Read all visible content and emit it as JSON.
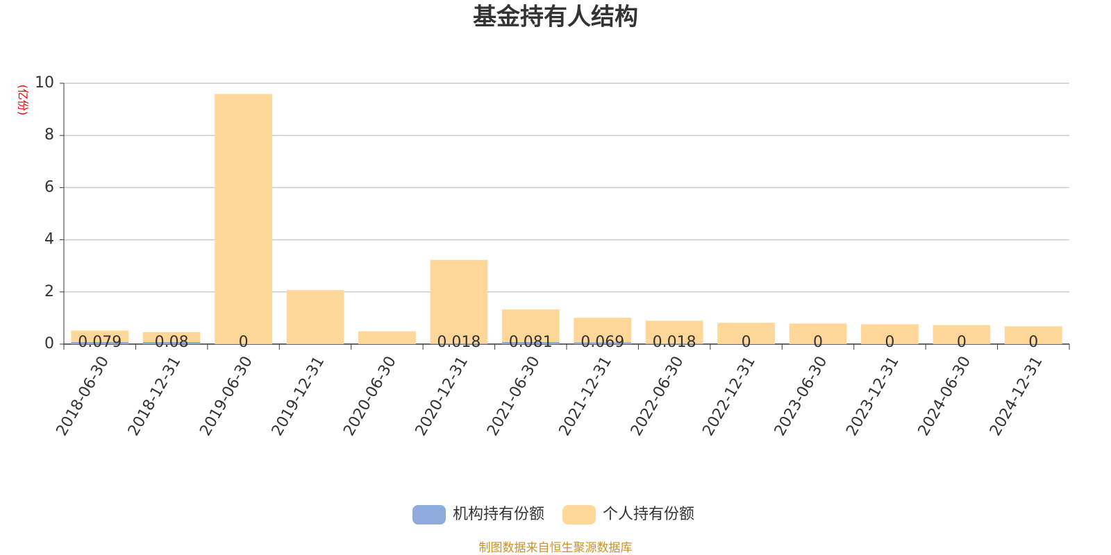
{
  "chart_data": {
    "type": "stacked_bar",
    "title": "基金持有人结构",
    "y_label": "(亿份)",
    "source": "制图数据来自恒生聚源数据库",
    "categories": [
      "2018-06-30",
      "2018-12-31",
      "2019-06-30",
      "2019-12-31",
      "2020-06-30",
      "2020-12-31",
      "2021-06-30",
      "2021-12-31",
      "2022-06-30",
      "2022-12-31",
      "2023-06-30",
      "2023-12-31",
      "2024-06-30",
      "2024-12-31"
    ],
    "series": [
      {
        "name": "机构持有份额",
        "color": "#8faadc",
        "values": [
          0.079,
          0.08,
          0,
          null,
          null,
          0.018,
          0.081,
          0.069,
          0.018,
          0,
          0,
          0,
          0,
          0
        ]
      },
      {
        "name": "个人持有份额",
        "color": "#ffd899",
        "values": [
          0.44,
          0.38,
          9.59,
          2.07,
          0.49,
          3.21,
          1.25,
          0.94,
          0.88,
          0.82,
          0.79,
          0.76,
          0.73,
          0.68
        ]
      }
    ],
    "ylim": [
      0,
      10
    ],
    "yticks": [
      0,
      2,
      4,
      6,
      8,
      10
    ],
    "grid": true
  }
}
